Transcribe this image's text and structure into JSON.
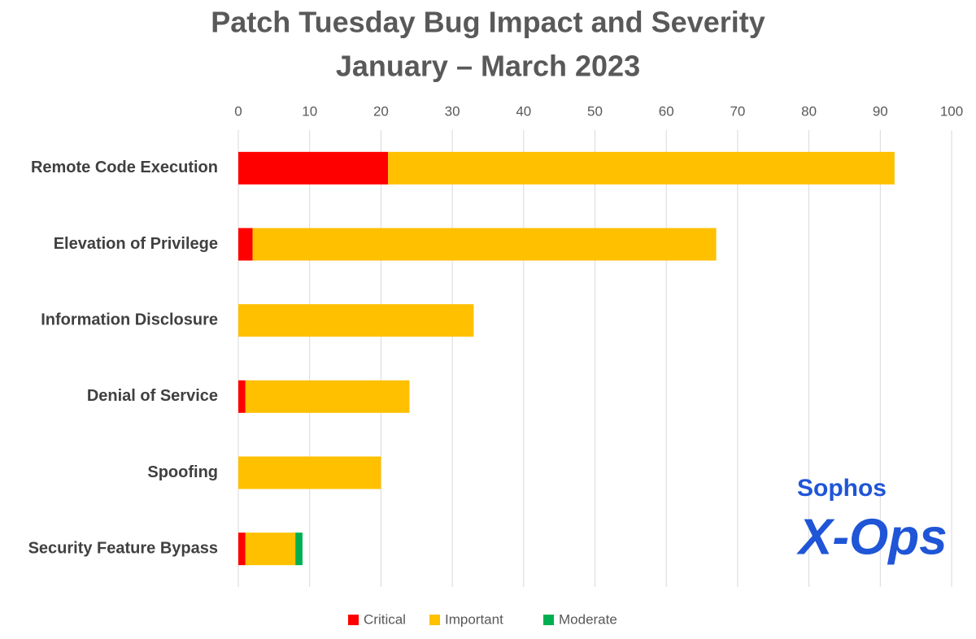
{
  "chart_data": {
    "type": "stacked-barh",
    "title": [
      "Patch Tuesday Bug Impact and Severity",
      "January – March 2023"
    ],
    "categories": [
      "Remote Code Execution",
      "Elevation of Privilege",
      "Information Disclosure",
      "Denial of Service",
      "Spoofing",
      "Security Feature Bypass"
    ],
    "series": [
      {
        "name": "Critical",
        "color": "#ff0000",
        "values": [
          21,
          2,
          0,
          1,
          0,
          1
        ]
      },
      {
        "name": "Important",
        "color": "#ffc000",
        "values": [
          71,
          65,
          33,
          23,
          20,
          7
        ]
      },
      {
        "name": "Moderate",
        "color": "#00b050",
        "values": [
          0,
          0,
          0,
          0,
          0,
          1
        ]
      }
    ],
    "xlim": [
      0,
      100
    ],
    "xticks": [
      0,
      10,
      20,
      30,
      40,
      50,
      60,
      70,
      80,
      90,
      100
    ],
    "grid": true,
    "legend": "bottom"
  },
  "logo": {
    "brand": "Sophos",
    "name": "X-Ops"
  }
}
